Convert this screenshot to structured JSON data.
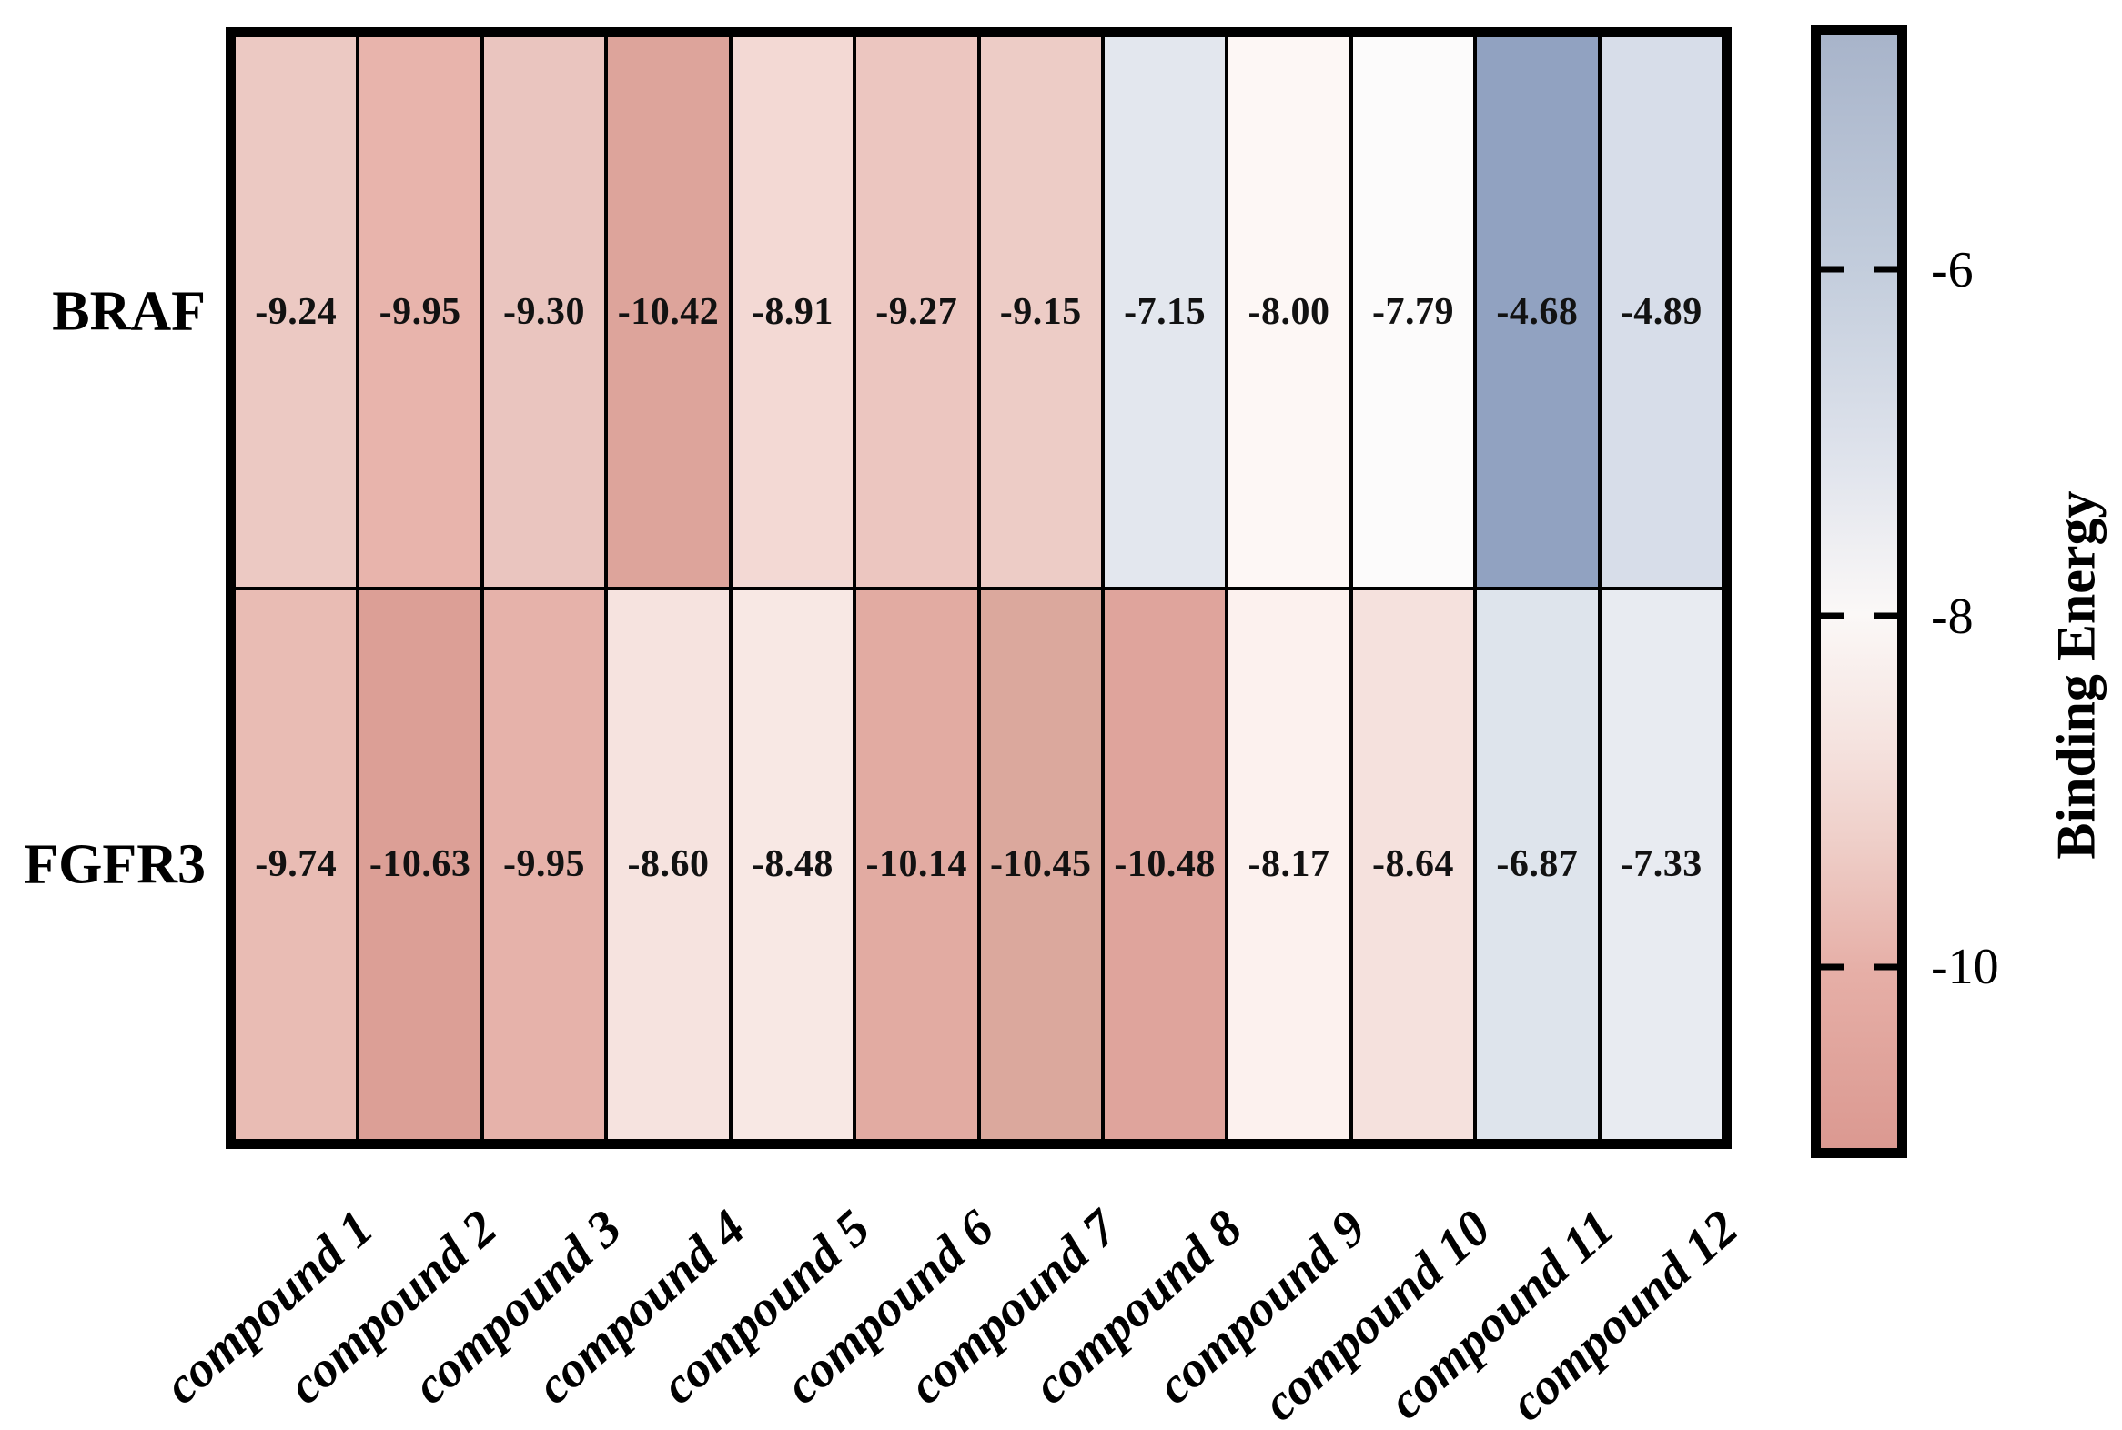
{
  "chart_data": {
    "type": "heatmap",
    "rows": [
      "BRAF",
      "FGFR3"
    ],
    "columns": [
      "compound 1",
      "compound 2",
      "compound 3",
      "compound 4",
      "compound 5",
      "compound 6",
      "compound 7",
      "compound 8",
      "compound 9",
      "compound 10",
      "compound 11",
      "compound 12"
    ],
    "series": [
      {
        "name": "BRAF",
        "values": [
          -9.24,
          -9.95,
          -9.3,
          -10.42,
          -8.91,
          -9.27,
          -9.15,
          -7.15,
          -8.0,
          -7.79,
          -4.68,
          -4.89
        ]
      },
      {
        "name": "FGFR3",
        "values": [
          -9.74,
          -10.63,
          -9.95,
          -8.6,
          -8.48,
          -10.14,
          -10.45,
          -10.48,
          -8.17,
          -8.64,
          -6.87,
          -7.33
        ]
      }
    ],
    "cells": [
      [
        {
          "label": "-9.24",
          "color": "#ecc9c3"
        },
        {
          "label": "-9.95",
          "color": "#e8b4ac"
        },
        {
          "label": "-9.30",
          "color": "#eac5bf"
        },
        {
          "label": "-10.42",
          "color": "#dda49b"
        },
        {
          "label": "-8.91",
          "color": "#f3d9d4"
        },
        {
          "label": "-9.27",
          "color": "#ecc6c0"
        },
        {
          "label": "-9.15",
          "color": "#edccc6"
        },
        {
          "label": "-7.15",
          "color": "#e3e7ee"
        },
        {
          "label": "-8.00",
          "color": "#fdf7f5"
        },
        {
          "label": "-7.79",
          "color": "#fcfbfb"
        },
        {
          "label": "-4.68",
          "color": "#91a2c1"
        },
        {
          "label": "-4.89",
          "color": "#d7dde9"
        }
      ],
      [
        {
          "label": "-9.74",
          "color": "#e9bcb4"
        },
        {
          "label": "-10.63",
          "color": "#dc9f96"
        },
        {
          "label": "-9.95",
          "color": "#e6b2aa"
        },
        {
          "label": "-8.60",
          "color": "#f6e3df"
        },
        {
          "label": "-8.48",
          "color": "#f8e8e4"
        },
        {
          "label": "-10.14",
          "color": "#e2aba2"
        },
        {
          "label": "-10.45",
          "color": "#dba89d"
        },
        {
          "label": "-10.48",
          "color": "#dfa49c"
        },
        {
          "label": "-8.17",
          "color": "#fcf1ee"
        },
        {
          "label": "-8.64",
          "color": "#f5e1dd"
        },
        {
          "label": "-6.87",
          "color": "#dee4ec"
        },
        {
          "label": "-7.33",
          "color": "#e8ebf1"
        }
      ]
    ],
    "colorbar": {
      "label": "Binding Energy",
      "ticks": [
        {
          "label": "-6",
          "value": -6
        },
        {
          "label": "-8",
          "value": -8
        },
        {
          "label": "-10",
          "value": -10
        }
      ],
      "range_top": -4.68,
      "range_bottom": -10.63,
      "gradient_top_to_bottom": [
        "#a8b4ca",
        "#c3cddc",
        "#dfe3ec",
        "#fbf8f7",
        "#f5e2de",
        "#efd0ca",
        "#e6afa7",
        "#db9991"
      ],
      "legend_position": "right"
    },
    "grid_color": "#000000",
    "border_color": "#000000",
    "value_text_color": "#121212",
    "xlabel": "",
    "ylabel": ""
  }
}
